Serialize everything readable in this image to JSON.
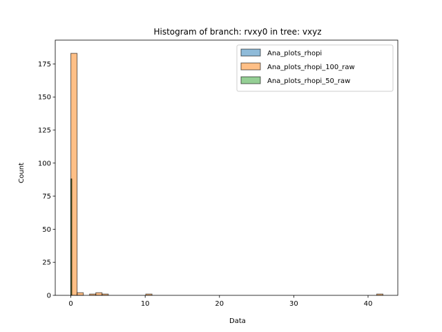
{
  "chart_data": {
    "type": "histogram",
    "title": "Histogram of branch: rvxy0 in tree: vxyz",
    "xlabel": "Data",
    "ylabel": "Count",
    "xlim": [
      -2.1,
      44.0
    ],
    "ylim": [
      0,
      193
    ],
    "xticks": [
      0,
      10,
      20,
      30,
      40
    ],
    "yticks": [
      0,
      25,
      50,
      75,
      100,
      125,
      150,
      175
    ],
    "grid": false,
    "legend_position": "top-right",
    "series": [
      {
        "name": "Ana_plots_rhopi",
        "color": "#1f77b4",
        "bins": [
          [
            0.0,
            0.12,
            88
          ]
        ]
      },
      {
        "name": "Ana_plots_rhopi_100_raw",
        "color": "#ff7f0e",
        "bins": [
          [
            0.0,
            0.84,
            183
          ],
          [
            0.84,
            1.68,
            2
          ],
          [
            2.52,
            3.36,
            1
          ],
          [
            3.36,
            4.2,
            2
          ],
          [
            4.2,
            5.04,
            1
          ],
          [
            10.08,
            10.92,
            1
          ],
          [
            41.16,
            42.0,
            1
          ]
        ]
      },
      {
        "name": "Ana_plots_rhopi_50_raw",
        "color": "#2ca02c",
        "bins": [
          [
            0.0,
            0.12,
            88
          ]
        ]
      }
    ]
  }
}
